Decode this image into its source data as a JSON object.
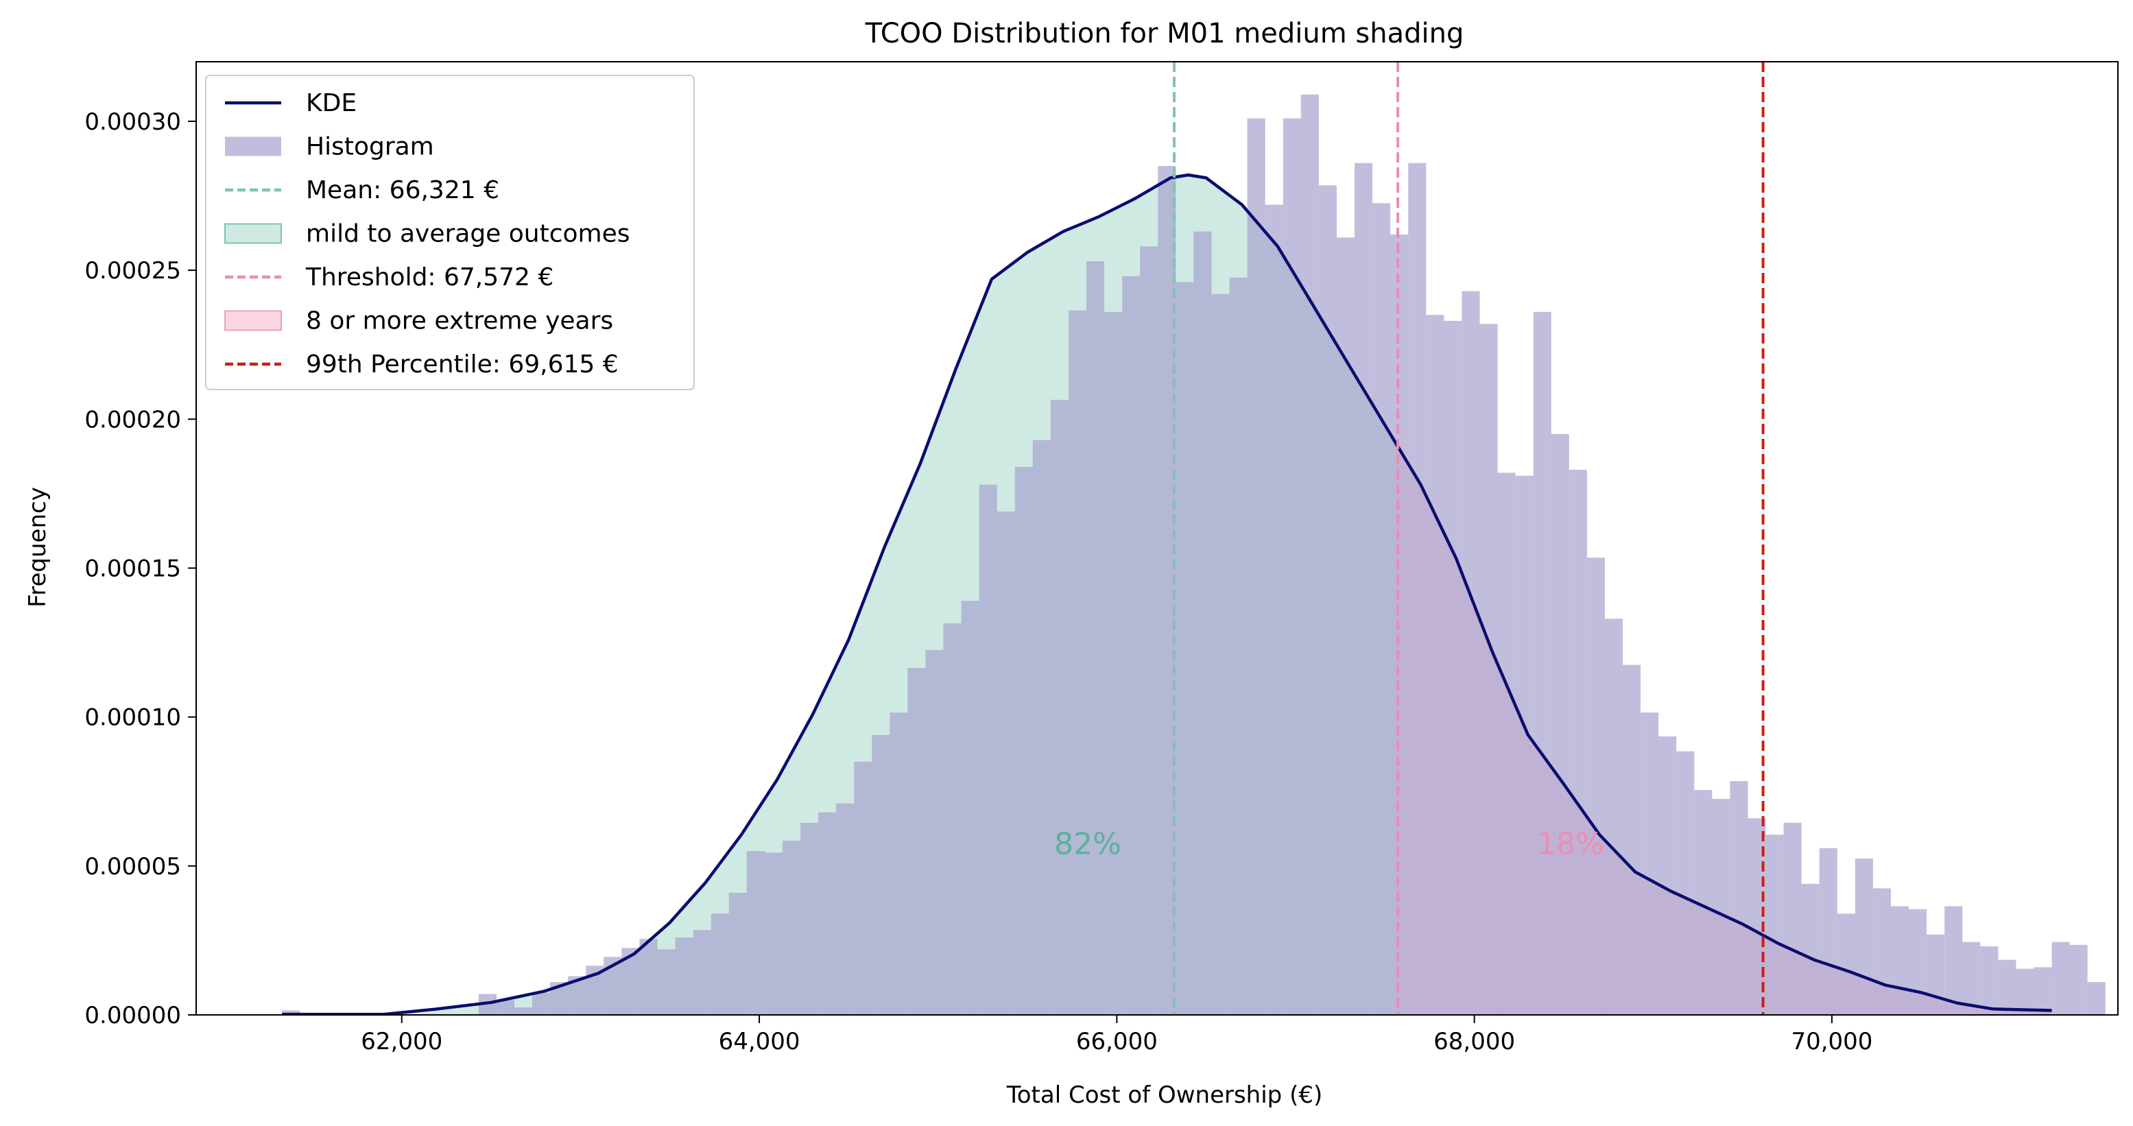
{
  "chart_data": {
    "type": "bar",
    "title": "TCOO Distribution for M01 medium shading",
    "xlabel": "Total Cost of Ownership (€)",
    "ylabel": "Frequency",
    "xlim": [
      60850,
      71600
    ],
    "ylim": [
      0,
      0.00032
    ],
    "xticks": [
      62000,
      64000,
      66000,
      68000,
      70000
    ],
    "xtick_labels": [
      "62,000",
      "64,000",
      "66,000",
      "68,000",
      "70,000"
    ],
    "yticks": [
      0,
      5e-05,
      0.0001,
      0.00015,
      0.0002,
      0.00025,
      0.0003
    ],
    "ytick_labels": [
      "0.00000",
      "0.00005",
      "0.00010",
      "0.00015",
      "0.00020",
      "0.00025",
      "0.00030"
    ],
    "grid": false,
    "legend_position": "top-left",
    "colors": {
      "kde": "#0b0c6e",
      "histogram": "#a6a3cf",
      "mild_fill": "#a8d9cc",
      "extreme_fill": "#f7b6d0",
      "mean_line": "#80c4b0",
      "threshold_line": "#ec8bb4",
      "percentile_line": "#cc1f15",
      "mild_text": "#5db09c",
      "extreme_text": "#ee8db5"
    },
    "histogram": {
      "name": "Histogram",
      "bin_start": 61330,
      "bin_width": 100,
      "values": [
        1.5e-06,
        0,
        0,
        0,
        0,
        0,
        0,
        0,
        0,
        0,
        0,
        7e-06,
        5e-06,
        2.5e-06,
        7.5e-06,
        1.1e-05,
        1.3e-05,
        1.65e-05,
        1.95e-05,
        2.25e-05,
        2.55e-05,
        2.2e-05,
        2.6e-05,
        2.85e-05,
        3.4e-05,
        4.1e-05,
        5.5e-05,
        5.45e-05,
        5.85e-05,
        6.45e-05,
        6.8e-05,
        7.1e-05,
        8.5e-05,
        9.4e-05,
        0.0001015,
        0.0001165,
        0.0001225,
        0.0001315,
        0.000139,
        0.000178,
        0.000169,
        0.000184,
        0.000193,
        0.0002065,
        0.0002365,
        0.000253,
        0.000236,
        0.000248,
        0.000258,
        0.000285,
        0.000246,
        0.000263,
        0.000242,
        0.0002475,
        0.000301,
        0.000272,
        0.000301,
        0.000309,
        0.0002785,
        0.000261,
        0.000286,
        0.0002725,
        0.000262,
        0.000286,
        0.000235,
        0.000233,
        0.000243,
        0.000232,
        0.000182,
        0.000181,
        0.000236,
        0.000195,
        0.000183,
        0.0001535,
        0.000133,
        0.0001175,
        0.0001015,
        9.35e-05,
        8.85e-05,
        7.55e-05,
        7.25e-05,
        7.85e-05,
        6.6e-05,
        6.05e-05,
        6.45e-05,
        4.4e-05,
        5.6e-05,
        3.4e-05,
        5.25e-05,
        4.25e-05,
        3.65e-05,
        3.55e-05,
        2.7e-05,
        3.65e-05,
        2.45e-05,
        2.3e-05,
        1.85e-05,
        1.55e-05,
        1.6e-05,
        2.45e-05,
        2.35e-05,
        1.1e-05,
        0,
        0,
        0,
        0,
        0,
        0,
        0,
        1.5e-06
      ]
    },
    "kde": {
      "name": "KDE",
      "x": [
        61330,
        61600,
        61900,
        62200,
        62500,
        62800,
        63100,
        63300,
        63500,
        63700,
        63900,
        64100,
        64300,
        64500,
        64700,
        64900,
        65100,
        65300,
        65500,
        65700,
        65900,
        66100,
        66300,
        66400,
        66500,
        66700,
        66900,
        67100,
        67300,
        67500,
        67700,
        67900,
        68100,
        68300,
        68500,
        68700,
        68900,
        69100,
        69300,
        69500,
        69700,
        69900,
        70100,
        70300,
        70500,
        70700,
        70900,
        71230
      ],
      "y": [
        2e-07,
        2e-07,
        2e-07,
        2e-06,
        4.2e-06,
        8e-06,
        1.4e-05,
        2.05e-05,
        3.1e-05,
        4.45e-05,
        6.05e-05,
        7.9e-05,
        0.000101,
        0.000126,
        0.000157,
        0.000185,
        0.000217,
        0.000247,
        0.000256,
        0.000263,
        0.000268,
        0.000274,
        0.000281,
        0.000282,
        0.000281,
        0.000272,
        0.000258,
        0.000238,
        0.000218,
        0.000198,
        0.000178,
        0.000153,
        0.000122,
        9.4e-05,
        7.75e-05,
        6.05e-05,
        4.8e-05,
        4.15e-05,
        3.6e-05,
        3.05e-05,
        2.4e-05,
        1.85e-05,
        1.45e-05,
        1e-05,
        7.5e-06,
        4e-06,
        2e-06,
        1.5e-06
      ]
    },
    "mean": {
      "value": 66321,
      "label": "Mean: 66,321 €"
    },
    "threshold": {
      "value": 67572,
      "label": "Threshold: 67,572 €"
    },
    "percentile99": {
      "value": 69615,
      "label": "99th Percentile: 69,615 €"
    },
    "regions": [
      {
        "name": "mild to average outcomes",
        "percent_label": "82%",
        "label_x": 65650,
        "label_y": 5.4e-05
      },
      {
        "name": "8 or more extreme years",
        "percent_label": "18%",
        "label_x": 68350,
        "label_y": 5.4e-05
      }
    ],
    "legend": [
      "KDE",
      "Histogram",
      "Mean: 66,321 €",
      "mild to average outcomes",
      "Threshold: 67,572 €",
      "8 or more extreme years",
      "99th Percentile: 69,615 €"
    ]
  }
}
